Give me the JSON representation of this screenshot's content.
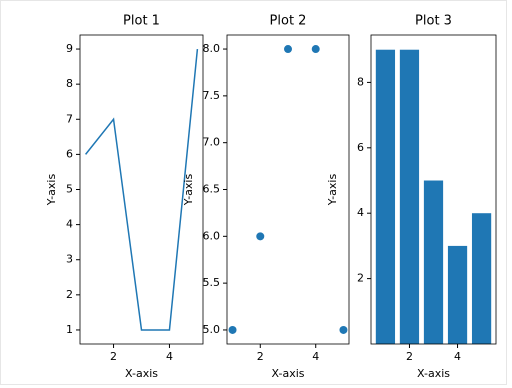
{
  "chart_data": [
    {
      "type": "line",
      "title": "Plot 1",
      "x_label": "X-axis",
      "y_label": "Y-axis",
      "x": [
        1,
        2,
        3,
        4,
        5
      ],
      "values": [
        6,
        7,
        1,
        1,
        9
      ],
      "color": "#1f77b4",
      "xlim": [
        0.8,
        5.2
      ],
      "ylim": [
        0.6,
        9.4
      ],
      "xticks": [
        2,
        4
      ],
      "yticks": [
        1,
        2,
        3,
        4,
        5,
        6,
        7,
        8,
        9
      ]
    },
    {
      "type": "scatter",
      "title": "Plot 2",
      "x_label": "X-axis",
      "y_label": "Y-axis",
      "x": [
        1,
        2,
        3,
        4,
        5
      ],
      "values": [
        5,
        6,
        8,
        8,
        5
      ],
      "color": "#1f77b4",
      "xlim": [
        0.8,
        5.2
      ],
      "ylim": [
        4.85,
        8.15
      ],
      "xticks": [
        2,
        4
      ],
      "yticks": [
        {
          "value": 5,
          "label": "5.0"
        },
        {
          "value": 5.5,
          "label": "5.5"
        },
        {
          "value": 6,
          "label": "6.0"
        },
        {
          "value": 6.5,
          "label": "6.5"
        },
        {
          "value": 7,
          "label": "7.0"
        },
        {
          "value": 7.5,
          "label": "7.5"
        },
        {
          "value": 8,
          "label": "8.0"
        }
      ]
    },
    {
      "type": "bar",
      "title": "Plot 3",
      "x_label": "X-axis",
      "y_label": "Y-axis",
      "x": [
        1,
        2,
        3,
        4,
        5
      ],
      "values": [
        9,
        9,
        5,
        3,
        4
      ],
      "color": "#1f77b4",
      "xlim": [
        0.4,
        5.6
      ],
      "ylim": [
        0,
        9.45
      ],
      "xticks": [
        2,
        4
      ],
      "yticks": [
        2,
        4,
        6,
        8
      ]
    }
  ]
}
